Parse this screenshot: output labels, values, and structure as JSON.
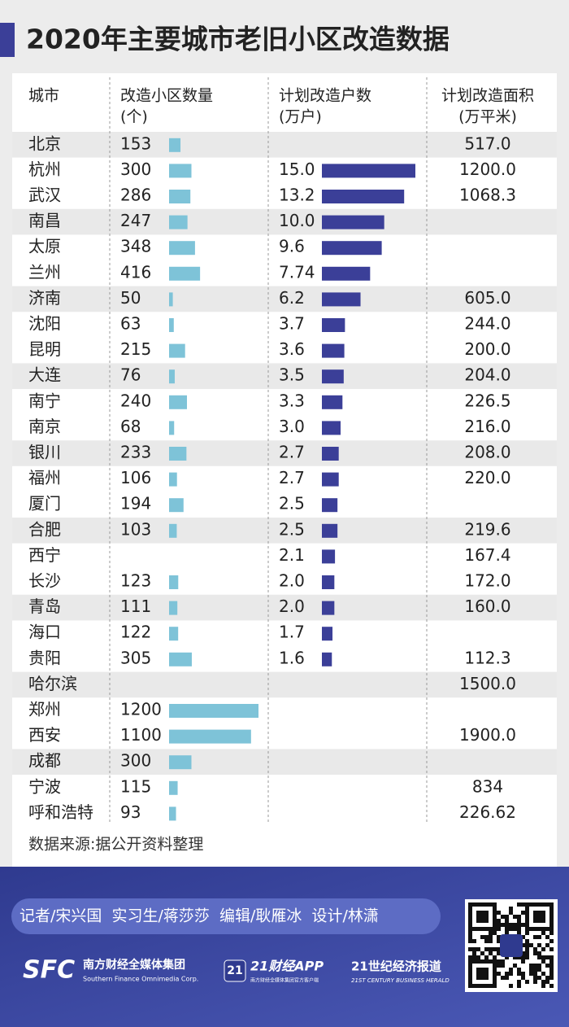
{
  "title": "2020年主要城市老旧小区改造数据",
  "table": {
    "header": [
      [
        "城市"
      ],
      [
        "改造小区数量",
        "(个)"
      ],
      [
        "计划改造户数",
        "(万户)"
      ],
      [
        "计划改造面积",
        "(万平米)"
      ]
    ],
    "rows": [
      [
        "北京",
        "153",
        null,
        "517.0"
      ],
      [
        "杭州",
        "300",
        "15.0",
        "1200.0"
      ],
      [
        "武汉",
        "286",
        "13.2",
        "1068.3"
      ],
      [
        "南昌",
        "247",
        "10.0",
        null
      ],
      [
        "太原",
        "348",
        "9.6",
        null
      ],
      [
        "兰州",
        "416",
        "7.74",
        null
      ],
      [
        "济南",
        "50",
        "6.2",
        "605.0"
      ],
      [
        "沈阳",
        "63",
        "3.7",
        "244.0"
      ],
      [
        "昆明",
        "215",
        "3.6",
        "200.0"
      ],
      [
        "大连",
        "76",
        "3.5",
        "204.0"
      ],
      [
        "南宁",
        "240",
        "3.3",
        "226.5"
      ],
      [
        "南京",
        "68",
        "3.0",
        "216.0"
      ],
      [
        "银川",
        "233",
        "2.7",
        "208.0"
      ],
      [
        "福州",
        "106",
        "2.7",
        "220.0"
      ],
      [
        "厦门",
        "194",
        "2.5",
        null
      ],
      [
        "合肥",
        "103",
        "2.5",
        "219.6"
      ],
      [
        "西宁",
        null,
        "2.1",
        "167.4"
      ],
      [
        "长沙",
        "123",
        "2.0",
        "172.0"
      ],
      [
        "青岛",
        "111",
        "2.0",
        "160.0"
      ],
      [
        "海口",
        "122",
        "1.7",
        null
      ],
      [
        "贵阳",
        "305",
        "1.6",
        "112.3"
      ],
      [
        "哈尔滨",
        null,
        null,
        "1500.0"
      ],
      [
        "郑州",
        "1200",
        null,
        null
      ],
      [
        "西安",
        "1100",
        null,
        "1900.0"
      ],
      [
        "成都",
        "300",
        null,
        null
      ],
      [
        "宁波",
        "115",
        null,
        "834"
      ],
      [
        "呼和浩特",
        "93",
        null,
        "226.62"
      ]
    ],
    "colors": [
      null,
      "#7ec3d8",
      "#3b3f98",
      null
    ]
  },
  "source": "数据来源:据公开资料整理",
  "credits": "记者/宋兴国  实习生/蒋莎莎  编辑/耿雁冰  设计/林潇",
  "footer": {
    "sfc": "SFC",
    "group": "南方财经全媒体集团",
    "group_en": "Southern Finance Omnimedia Corp.",
    "app_badge": "21",
    "app": "21财经APP",
    "app_sub": "南方财经全媒体集团官方客户端",
    "paper": "21世纪经济报道",
    "paper_en": "21ST CENTURY BUSINESS HERALD"
  }
}
